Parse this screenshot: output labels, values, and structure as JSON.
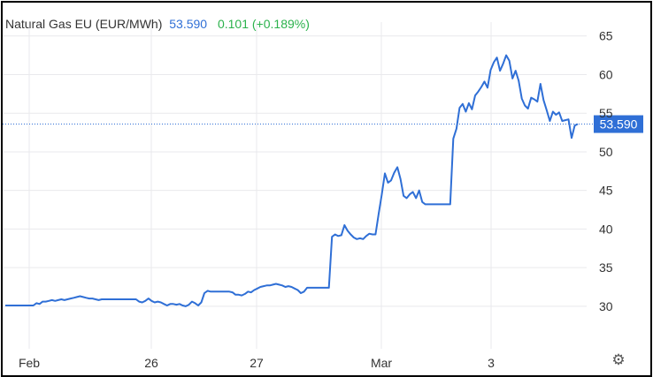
{
  "legend": {
    "name": "Natural Gas EU (EUR/MWh)",
    "last": "53.590",
    "change": "0.101 (+0.189%)"
  },
  "colors": {
    "line": "#2f6fd6",
    "change_up": "#2bb24c",
    "grid": "#e9e9ec",
    "text": "#333333",
    "last_label_bg": "#2f6fd6",
    "last_label_text": "#ffffff"
  },
  "settings_icon": "gear-icon",
  "chart_data": {
    "type": "line",
    "title": "Natural Gas EU (EUR/MWh)",
    "x_tick_labels": [
      "Feb",
      "26",
      "27",
      "Mar",
      "3"
    ],
    "y_tick_labels": [
      "30",
      "35",
      "40",
      "45",
      "50",
      "55",
      "60",
      "65"
    ],
    "ylim": [
      24.5,
      66.8
    ],
    "grid": true,
    "last_value_label": "53.590",
    "series": [
      {
        "values": [
          30.1,
          30.1,
          30.1,
          30.1,
          30.1,
          30.1,
          30.1,
          30.1,
          30.1,
          30.1,
          30.4,
          30.3,
          30.6,
          30.6,
          30.7,
          30.8,
          30.7,
          30.8,
          30.9,
          30.8,
          30.9,
          31.0,
          31.1,
          31.2,
          31.3,
          31.2,
          31.1,
          31.0,
          31.0,
          30.9,
          30.8,
          30.9,
          30.9,
          30.9,
          30.9,
          30.9,
          30.9,
          30.9,
          30.9,
          30.9,
          30.9,
          30.9,
          30.9,
          30.6,
          30.5,
          30.7,
          31.0,
          30.7,
          30.5,
          30.6,
          30.5,
          30.3,
          30.1,
          30.3,
          30.3,
          30.2,
          30.3,
          30.1,
          30.0,
          30.2,
          30.6,
          30.4,
          30.1,
          30.5,
          31.7,
          32.0,
          31.9,
          31.9,
          31.9,
          31.9,
          31.9,
          31.9,
          31.9,
          31.8,
          31.5,
          31.5,
          31.4,
          31.6,
          31.9,
          31.8,
          32.1,
          32.3,
          32.5,
          32.6,
          32.7,
          32.7,
          32.8,
          32.9,
          32.8,
          32.7,
          32.5,
          32.6,
          32.5,
          32.3,
          32.1,
          31.7,
          31.9,
          32.4,
          32.4,
          32.4,
          32.4,
          32.4,
          32.4,
          32.4,
          32.4,
          39.0,
          39.3,
          39.1,
          39.2,
          40.5,
          39.8,
          39.3,
          38.9,
          38.7,
          38.8,
          38.7,
          39.1,
          39.4,
          39.3,
          39.3,
          42.0,
          44.5,
          47.2,
          46.0,
          46.3,
          47.3,
          48.0,
          46.5,
          44.3,
          44.0,
          44.5,
          44.8,
          44.0,
          45.0,
          43.5,
          43.2,
          43.2,
          43.2,
          43.2,
          43.2,
          43.2,
          43.2,
          43.2,
          43.2,
          51.7,
          53.0,
          55.7,
          56.2,
          55.2,
          56.3,
          55.5,
          57.3,
          57.8,
          58.4,
          59.1,
          58.3,
          60.6,
          61.6,
          62.2,
          60.5,
          61.4,
          62.5,
          61.8,
          59.5,
          60.5,
          59.2,
          56.9,
          56.0,
          55.6,
          57.0,
          56.8,
          56.5,
          58.8,
          56.7,
          55.4,
          54.0,
          55.2,
          54.8,
          55.1,
          54.0,
          54.1,
          54.2,
          51.8,
          53.4,
          53.59
        ],
        "color": "#2f6fd6"
      }
    ]
  }
}
